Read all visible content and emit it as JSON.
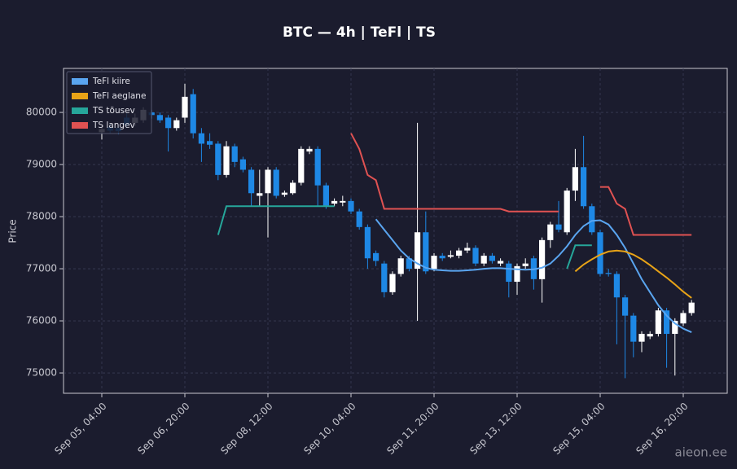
{
  "chart_data": {
    "type": "candlestick",
    "title": "BTC — 4h  |  TeFl  |  TS",
    "y_label": "Price",
    "watermark": "aieon.ee",
    "categories": [
      "Sep 05, 04:00",
      null,
      null,
      null,
      null,
      null,
      null,
      null,
      null,
      null,
      "Sep 06, 20:00",
      null,
      null,
      null,
      null,
      null,
      null,
      null,
      null,
      null,
      "Sep 08, 12:00",
      null,
      null,
      null,
      null,
      null,
      null,
      null,
      null,
      null,
      "Sep 10, 04:00",
      null,
      null,
      null,
      null,
      null,
      null,
      null,
      null,
      null,
      "Sep 11, 20:00",
      null,
      null,
      null,
      null,
      null,
      null,
      null,
      null,
      null,
      "Sep 13, 12:00",
      null,
      null,
      null,
      null,
      null,
      null,
      null,
      null,
      null,
      "Sep 15, 04:00",
      null,
      null,
      null,
      null,
      null,
      null,
      null,
      null,
      null,
      "Sep 16, 20:00",
      null
    ],
    "open": [
      79620,
      79720,
      79700,
      79900,
      79800,
      79850,
      80000,
      79950,
      79900,
      79700,
      79900,
      80350,
      79600,
      79450,
      79400,
      78800,
      79350,
      79100,
      78900,
      78400,
      78450,
      78900,
      78420,
      78450,
      78650,
      79250,
      79300,
      78600,
      78250,
      78270,
      78300,
      78100,
      77800,
      77300,
      77100,
      76550,
      76900,
      77200,
      77000,
      77700,
      77000,
      77250,
      77230,
      77250,
      77350,
      77400,
      77100,
      77250,
      77100,
      77100,
      76750,
      77050,
      77200,
      76800,
      77550,
      77850,
      77700,
      78500,
      78950,
      78200,
      77700,
      76920,
      76900,
      76450,
      76100,
      75600,
      75700,
      75750,
      76200,
      75750,
      75950,
      76150
    ],
    "high": [
      79760,
      79780,
      79760,
      79980,
      79980,
      80100,
      80050,
      80000,
      79950,
      79900,
      80550,
      80450,
      79700,
      79600,
      79450,
      79450,
      79400,
      79150,
      78950,
      78900,
      78950,
      78950,
      78500,
      78700,
      79350,
      79350,
      79350,
      78650,
      78350,
      78400,
      78350,
      78150,
      77850,
      77350,
      77150,
      76950,
      77250,
      77250,
      79800,
      78100,
      77300,
      77300,
      77350,
      77400,
      77500,
      77450,
      77300,
      77300,
      77200,
      77150,
      77100,
      77200,
      77250,
      77600,
      77900,
      78300,
      78550,
      79300,
      79550,
      78250,
      77750,
      77000,
      76950,
      76500,
      76150,
      75800,
      75800,
      76250,
      76250,
      76050,
      76200,
      76400
    ],
    "low": [
      79480,
      79600,
      79580,
      79700,
      79740,
      79800,
      79880,
      79800,
      79250,
      79650,
      79800,
      79500,
      79050,
      79300,
      78700,
      78750,
      78950,
      78850,
      78200,
      78200,
      77600,
      78350,
      78380,
      78420,
      78600,
      79200,
      78200,
      78150,
      78200,
      78200,
      78050,
      77750,
      77000,
      77050,
      76450,
      76500,
      76850,
      76950,
      76000,
      76900,
      76950,
      77150,
      77200,
      77200,
      77300,
      77050,
      77050,
      77100,
      77050,
      76450,
      76500,
      77000,
      76600,
      76350,
      77400,
      77700,
      77650,
      78300,
      78150,
      77650,
      76850,
      76850,
      75550,
      74900,
      75300,
      75400,
      75650,
      75700,
      75100,
      74950,
      75900,
      76100
    ],
    "close": [
      79680,
      79650,
      79640,
      79760,
      79900,
      80050,
      79950,
      79850,
      79700,
      79850,
      80300,
      79600,
      79400,
      79380,
      78800,
      79350,
      79050,
      78900,
      78450,
      78450,
      78900,
      78400,
      78460,
      78650,
      79300,
      79300,
      78600,
      78200,
      78300,
      78300,
      78100,
      77800,
      77200,
      77150,
      76550,
      76900,
      77200,
      77000,
      77700,
      76950,
      77250,
      77200,
      77260,
      77350,
      77400,
      77100,
      77250,
      77150,
      77150,
      76750,
      77050,
      77100,
      76800,
      77550,
      77850,
      77750,
      78500,
      78950,
      78200,
      77700,
      76900,
      76900,
      76450,
      76100,
      75600,
      75750,
      75750,
      76200,
      75750,
      76000,
      76150,
      76350
    ],
    "up_color": "#ffffff",
    "down_color": "#1e88e5",
    "series": [
      {
        "name": "TeFl kiire",
        "color": "#5aa5f0",
        "values": [
          null,
          null,
          null,
          null,
          null,
          null,
          null,
          null,
          null,
          null,
          null,
          null,
          null,
          null,
          null,
          null,
          null,
          null,
          null,
          null,
          null,
          null,
          null,
          null,
          null,
          null,
          null,
          null,
          null,
          null,
          null,
          null,
          null,
          77950,
          77750,
          77550,
          77350,
          77200,
          77100,
          77020,
          76980,
          76970,
          76960,
          76960,
          76970,
          76980,
          77000,
          77010,
          77010,
          77000,
          76990,
          76980,
          76990,
          77020,
          77100,
          77250,
          77430,
          77650,
          77820,
          77920,
          77930,
          77850,
          77650,
          77400,
          77100,
          76800,
          76550,
          76300,
          76100,
          75950,
          75850,
          75780
        ]
      },
      {
        "name": "TeFl aeglane",
        "color": "#e8a317",
        "values": [
          null,
          null,
          null,
          null,
          null,
          null,
          null,
          null,
          null,
          null,
          null,
          null,
          null,
          null,
          null,
          null,
          null,
          null,
          null,
          null,
          null,
          null,
          null,
          null,
          null,
          null,
          null,
          null,
          null,
          null,
          null,
          null,
          null,
          null,
          null,
          null,
          null,
          null,
          null,
          null,
          null,
          null,
          null,
          null,
          null,
          null,
          null,
          null,
          null,
          null,
          null,
          null,
          null,
          null,
          null,
          null,
          null,
          76950,
          77080,
          77180,
          77270,
          77330,
          77350,
          77330,
          77270,
          77180,
          77070,
          76950,
          76830,
          76700,
          76560,
          76440
        ]
      },
      {
        "name": "TS tõusev",
        "color": "#26a69a",
        "values": [
          null,
          null,
          null,
          null,
          null,
          null,
          null,
          null,
          null,
          null,
          null,
          null,
          null,
          null,
          77650,
          78200,
          78200,
          78200,
          78200,
          78200,
          78200,
          78200,
          78200,
          78200,
          78200,
          78200,
          78200,
          78200,
          78200,
          null,
          null,
          null,
          null,
          null,
          null,
          null,
          null,
          null,
          null,
          null,
          null,
          null,
          null,
          null,
          null,
          null,
          null,
          null,
          null,
          null,
          null,
          null,
          null,
          null,
          null,
          null,
          77000,
          77450,
          77450,
          77450,
          null,
          null,
          null,
          null,
          null,
          null,
          null,
          null,
          null,
          null,
          null,
          null
        ]
      },
      {
        "name": "TS langev",
        "color": "#e05252",
        "values": [
          null,
          null,
          null,
          null,
          null,
          null,
          null,
          null,
          null,
          null,
          null,
          null,
          null,
          null,
          null,
          null,
          null,
          null,
          null,
          null,
          null,
          null,
          null,
          null,
          null,
          null,
          null,
          null,
          null,
          null,
          79600,
          79300,
          78800,
          78700,
          78150,
          78150,
          78150,
          78150,
          78150,
          78150,
          78150,
          78150,
          78150,
          78150,
          78150,
          78150,
          78150,
          78150,
          78150,
          78100,
          78100,
          78100,
          78100,
          78100,
          78100,
          78100,
          null,
          null,
          null,
          null,
          78570,
          78570,
          78250,
          78150,
          77650,
          77650,
          77650,
          77650,
          77650,
          77650,
          77650,
          77650
        ]
      }
    ],
    "ylim": [
      74610,
      80845
    ],
    "yticks": [
      75000,
      76000,
      77000,
      78000,
      79000,
      80000
    ],
    "grid": true,
    "legend": "upper-left"
  }
}
